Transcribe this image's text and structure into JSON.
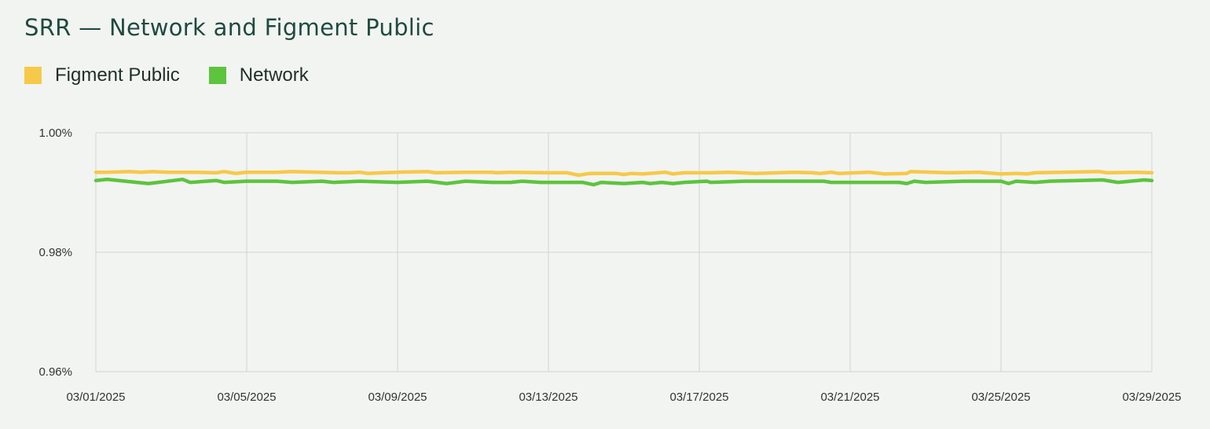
{
  "title": "SRR — Network and Figment Public",
  "chart_data": {
    "type": "line",
    "title": "SRR — Network and Figment Public",
    "xlabel": "",
    "ylabel": "",
    "ylim": [
      0.96,
      1.0
    ],
    "x_range": [
      0,
      28
    ],
    "y_ticks": [
      {
        "value": 1.0,
        "label": "1.00%"
      },
      {
        "value": 0.98,
        "label": "0.98%"
      },
      {
        "value": 0.96,
        "label": "0.96%"
      }
    ],
    "x_ticks": [
      {
        "value": 0,
        "label": "03/01/2025"
      },
      {
        "value": 4,
        "label": "03/05/2025"
      },
      {
        "value": 8,
        "label": "03/09/2025"
      },
      {
        "value": 12,
        "label": "03/13/2025"
      },
      {
        "value": 16,
        "label": "03/17/2025"
      },
      {
        "value": 20,
        "label": "03/21/2025"
      },
      {
        "value": 24,
        "label": "03/25/2025"
      },
      {
        "value": 28,
        "label": "03/29/2025"
      }
    ],
    "legend_position": "top-left",
    "series": [
      {
        "name": "Figment Public",
        "color": "#f7c948",
        "points": [
          [
            0,
            0.9934
          ],
          [
            0.3,
            0.9934
          ],
          [
            0.9,
            0.9935
          ],
          [
            1.2,
            0.9934
          ],
          [
            1.5,
            0.9935
          ],
          [
            1.9,
            0.9934
          ],
          [
            2.6,
            0.9934
          ],
          [
            3.2,
            0.9933
          ],
          [
            3.4,
            0.9935
          ],
          [
            3.7,
            0.9932
          ],
          [
            4,
            0.9934
          ],
          [
            4.8,
            0.9934
          ],
          [
            5.2,
            0.9935
          ],
          [
            6.4,
            0.9933
          ],
          [
            6.7,
            0.9933
          ],
          [
            7,
            0.9934
          ],
          [
            7.2,
            0.9932
          ],
          [
            7.6,
            0.9933
          ],
          [
            8,
            0.9934
          ],
          [
            8.8,
            0.9935
          ],
          [
            9,
            0.9933
          ],
          [
            9.8,
            0.9934
          ],
          [
            10.5,
            0.9934
          ],
          [
            10.6,
            0.9933
          ],
          [
            11,
            0.9934
          ],
          [
            12,
            0.9933
          ],
          [
            12.5,
            0.9933
          ],
          [
            12.8,
            0.9929
          ],
          [
            13.1,
            0.9932
          ],
          [
            13.8,
            0.9932
          ],
          [
            14.0,
            0.993
          ],
          [
            14.2,
            0.9932
          ],
          [
            14.5,
            0.9931
          ],
          [
            15.1,
            0.9934
          ],
          [
            15.3,
            0.9931
          ],
          [
            15.6,
            0.9933
          ],
          [
            16.3,
            0.9933
          ],
          [
            16.8,
            0.9934
          ],
          [
            17.5,
            0.9932
          ],
          [
            18.5,
            0.9934
          ],
          [
            19.0,
            0.9933
          ],
          [
            19.2,
            0.9932
          ],
          [
            19.5,
            0.9934
          ],
          [
            19.7,
            0.9932
          ],
          [
            20.5,
            0.9934
          ],
          [
            20.9,
            0.9931
          ],
          [
            21.5,
            0.9932
          ],
          [
            21.6,
            0.9935
          ],
          [
            22.6,
            0.9933
          ],
          [
            23.4,
            0.9934
          ],
          [
            24,
            0.9931
          ],
          [
            24.4,
            0.9932
          ],
          [
            24.7,
            0.9931
          ],
          [
            24.9,
            0.9933
          ],
          [
            26.6,
            0.9935
          ],
          [
            26.8,
            0.9933
          ],
          [
            27.6,
            0.9934
          ],
          [
            28,
            0.9933
          ]
        ]
      },
      {
        "name": "Network",
        "color": "#5cc43d",
        "points": [
          [
            0,
            0.992
          ],
          [
            0.3,
            0.9922
          ],
          [
            1.4,
            0.9915
          ],
          [
            2.3,
            0.9922
          ],
          [
            2.5,
            0.9917
          ],
          [
            3.2,
            0.992
          ],
          [
            3.4,
            0.9917
          ],
          [
            4,
            0.9919
          ],
          [
            4.8,
            0.9919
          ],
          [
            5.2,
            0.9917
          ],
          [
            6,
            0.9919
          ],
          [
            6.3,
            0.9917
          ],
          [
            7,
            0.9919
          ],
          [
            8,
            0.9917
          ],
          [
            8.8,
            0.9919
          ],
          [
            9.3,
            0.9915
          ],
          [
            9.8,
            0.9919
          ],
          [
            10.5,
            0.9917
          ],
          [
            11,
            0.9917
          ],
          [
            11.3,
            0.9919
          ],
          [
            11.8,
            0.9917
          ],
          [
            12.9,
            0.9917
          ],
          [
            13.2,
            0.9913
          ],
          [
            13.4,
            0.9917
          ],
          [
            14,
            0.9915
          ],
          [
            14.5,
            0.9917
          ],
          [
            14.7,
            0.9915
          ],
          [
            15.0,
            0.9917
          ],
          [
            15.3,
            0.9915
          ],
          [
            15.6,
            0.9917
          ],
          [
            16.2,
            0.9919
          ],
          [
            16.3,
            0.9917
          ],
          [
            17.2,
            0.9919
          ],
          [
            19.3,
            0.9919
          ],
          [
            19.5,
            0.9917
          ],
          [
            21.3,
            0.9917
          ],
          [
            21.5,
            0.9915
          ],
          [
            21.7,
            0.9919
          ],
          [
            22,
            0.9917
          ],
          [
            23.0,
            0.9919
          ],
          [
            24,
            0.9919
          ],
          [
            24.2,
            0.9915
          ],
          [
            24.4,
            0.9919
          ],
          [
            24.9,
            0.9917
          ],
          [
            25.3,
            0.9919
          ],
          [
            26.7,
            0.9921
          ],
          [
            27.1,
            0.9917
          ],
          [
            27.8,
            0.9921
          ],
          [
            28,
            0.992
          ]
        ]
      }
    ]
  }
}
